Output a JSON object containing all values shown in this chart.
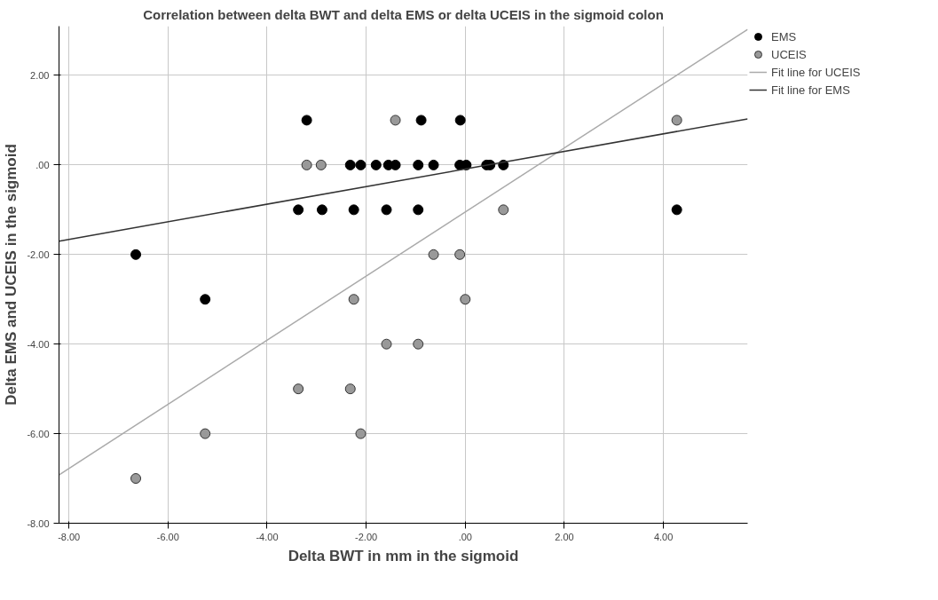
{
  "chart_data": {
    "type": "scatter",
    "title": "Correlation between delta BWT and delta EMS or delta UCEIS in the sigmoid colon",
    "xlabel": "Delta BWT in mm in the sigmoid",
    "ylabel": "Delta EMS and UCEIS in the sigmoid",
    "xlim": [
      -8.2,
      5.7
    ],
    "ylim": [
      -8,
      3.1
    ],
    "xticks": [
      {
        "value": -8,
        "label": "-8.00"
      },
      {
        "value": -6,
        "label": "-6.00"
      },
      {
        "value": -4,
        "label": "-4.00"
      },
      {
        "value": -2,
        "label": "-2.00"
      },
      {
        "value": 0,
        "label": ".00"
      },
      {
        "value": 2,
        "label": "2.00"
      },
      {
        "value": 4,
        "label": "4.00"
      }
    ],
    "yticks": [
      {
        "value": -8,
        "label": "-8.00"
      },
      {
        "value": -6,
        "label": "-6.00"
      },
      {
        "value": -4,
        "label": "-4.00"
      },
      {
        "value": -2,
        "label": "-2.00"
      },
      {
        "value": 0,
        "label": ".00"
      },
      {
        "value": 2,
        "label": "2.00"
      }
    ],
    "grid": true,
    "legend": "top right",
    "series": [
      {
        "name": "EMS",
        "marker": "circle",
        "color": "#000000",
        "x": [
          -3.2,
          -0.89,
          -0.1,
          -2.32,
          -2.11,
          -1.8,
          -1.55,
          -1.41,
          -0.95,
          -0.64,
          -0.11,
          0.02,
          0.43,
          0.5,
          0.77,
          -3.37,
          -2.89,
          -2.25,
          -1.59,
          -0.95,
          4.27,
          -6.65,
          -5.25
        ],
        "values": [
          1,
          1,
          1,
          0,
          0,
          0,
          0,
          0,
          0,
          0,
          0,
          0,
          0,
          0,
          0,
          -1,
          -1,
          -1,
          -1,
          -1,
          -1,
          -2,
          -3
        ]
      },
      {
        "name": "UCEIS",
        "marker": "circle",
        "color": "#999999",
        "x": [
          -1.41,
          4.27,
          -3.2,
          -2.91,
          0.77,
          -0.64,
          -0.11,
          -2.25,
          0.0,
          -1.59,
          -0.95,
          -3.37,
          -2.32,
          -5.25,
          -2.11,
          -6.65
        ],
        "values": [
          1,
          1,
          0,
          0,
          -1,
          -2,
          -2,
          -3,
          -3,
          -4,
          -4,
          -5,
          -5,
          -6,
          -6,
          -7
        ]
      },
      {
        "name": "Fit line for UCEIS",
        "type": "line",
        "color": "#aaaaaa",
        "x": [
          -8.2,
          5.7
        ],
        "values": [
          -6.92,
          3.03
        ]
      },
      {
        "name": "Fit line for EMS",
        "type": "line",
        "color": "#333333",
        "x": [
          -8.2,
          5.7
        ],
        "values": [
          -1.7,
          1.03
        ]
      }
    ]
  }
}
